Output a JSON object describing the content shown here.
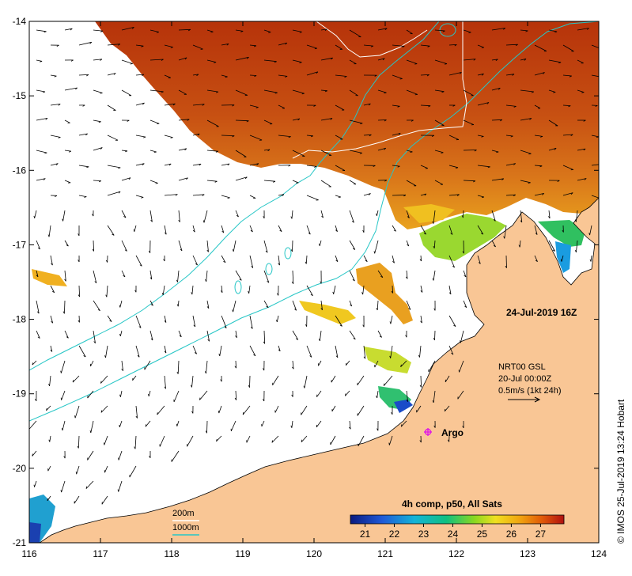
{
  "map": {
    "datetime_label": "24-Jul-2019 16Z",
    "current_info": {
      "line1": "NRT00 GSL",
      "line2": "20-Jul 00:00Z",
      "line3": "0.5m/s (1kt 24h)"
    },
    "argo_label": "Argo",
    "credit": "© IMOS 25-Jul-2019 13:24 Hobart",
    "contour_legend": {
      "label_200": "200m",
      "label_1000": "1000m",
      "color_200": "#ffffff",
      "color_1000": "#26c6c6"
    },
    "colorbar": {
      "title": "4h comp, p50, All Sats",
      "min": 20.5,
      "max": 27.8,
      "ticks": [
        "21",
        "22",
        "23",
        "24",
        "25",
        "26",
        "27"
      ]
    },
    "x_ticks": [
      "116",
      "117",
      "118",
      "119",
      "120",
      "121",
      "122",
      "123",
      "124"
    ],
    "y_ticks": [
      "-14",
      "-15",
      "-16",
      "-17",
      "-18",
      "-19",
      "-20",
      "-21"
    ],
    "x_range": [
      116,
      124
    ],
    "y_range": [
      -21,
      -14
    ],
    "colors": {
      "land": "#f9c695",
      "ocean_nodata": "#ffffff",
      "argo": "#e020e0",
      "contour_1000": "#26c6c6",
      "contour_200": "#ffffff"
    }
  }
}
